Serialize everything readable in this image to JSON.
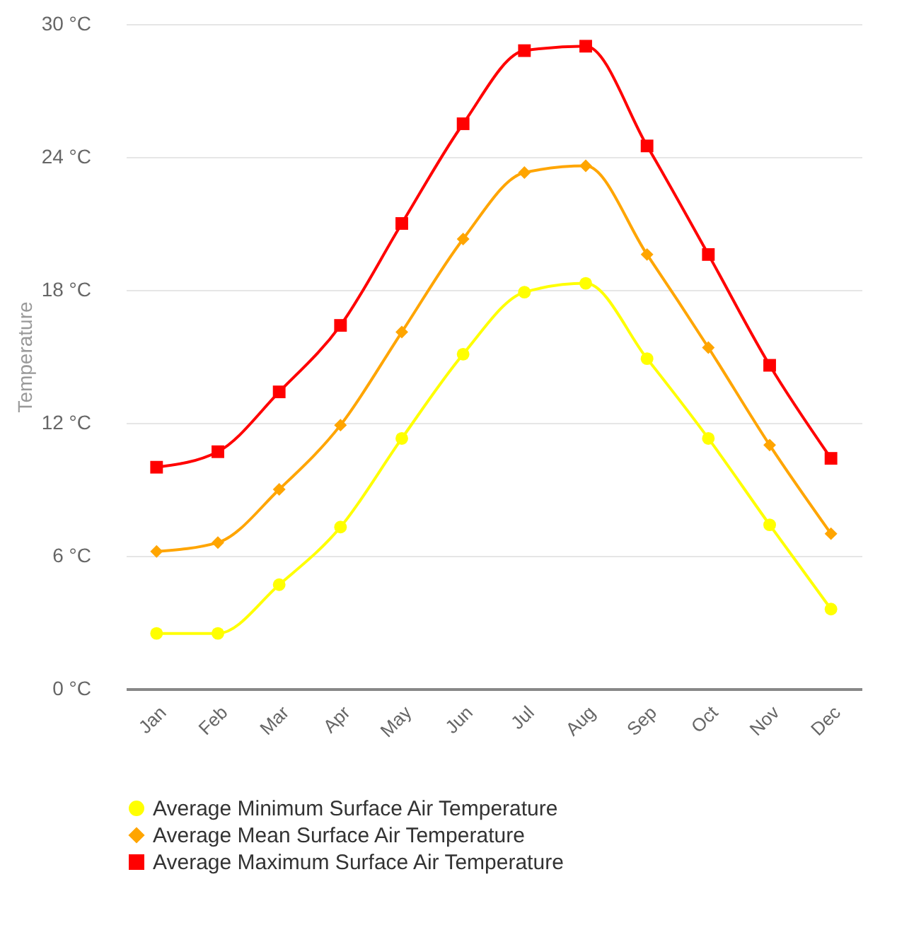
{
  "chart_data": {
    "type": "line",
    "ylabel": "Temperature",
    "categories": [
      "Jan",
      "Feb",
      "Mar",
      "Apr",
      "May",
      "Jun",
      "Jul",
      "Aug",
      "Sep",
      "Oct",
      "Nov",
      "Dec"
    ],
    "series": [
      {
        "name": "Average Minimum Surface Air Temperature",
        "color": "#ffff00",
        "marker": "circle",
        "values": [
          2.5,
          2.5,
          4.7,
          7.3,
          11.3,
          15.1,
          17.9,
          18.3,
          14.9,
          11.3,
          7.4,
          3.6
        ]
      },
      {
        "name": "Average Mean Surface Air Temperature",
        "color": "#ffa500",
        "marker": "diamond",
        "values": [
          6.2,
          6.6,
          9.0,
          11.9,
          16.1,
          20.3,
          23.3,
          23.6,
          19.6,
          15.4,
          11.0,
          7.0
        ]
      },
      {
        "name": "Average Maximum Surface Air Temperature",
        "color": "#ff0000",
        "marker": "square",
        "values": [
          10.0,
          10.7,
          13.4,
          16.4,
          21.0,
          25.5,
          28.8,
          29.0,
          24.5,
          19.6,
          14.6,
          10.4
        ]
      }
    ],
    "ylim": [
      0,
      30
    ],
    "yticks": [
      {
        "value": 0,
        "label": "0 °C"
      },
      {
        "value": 6,
        "label": "6 °C"
      },
      {
        "value": 12,
        "label": "12 °C"
      },
      {
        "value": 18,
        "label": "18 °C"
      },
      {
        "value": 24,
        "label": "24 °C"
      },
      {
        "value": 30,
        "label": "30 °C"
      }
    ],
    "grid": "y",
    "legend": "bottom"
  }
}
